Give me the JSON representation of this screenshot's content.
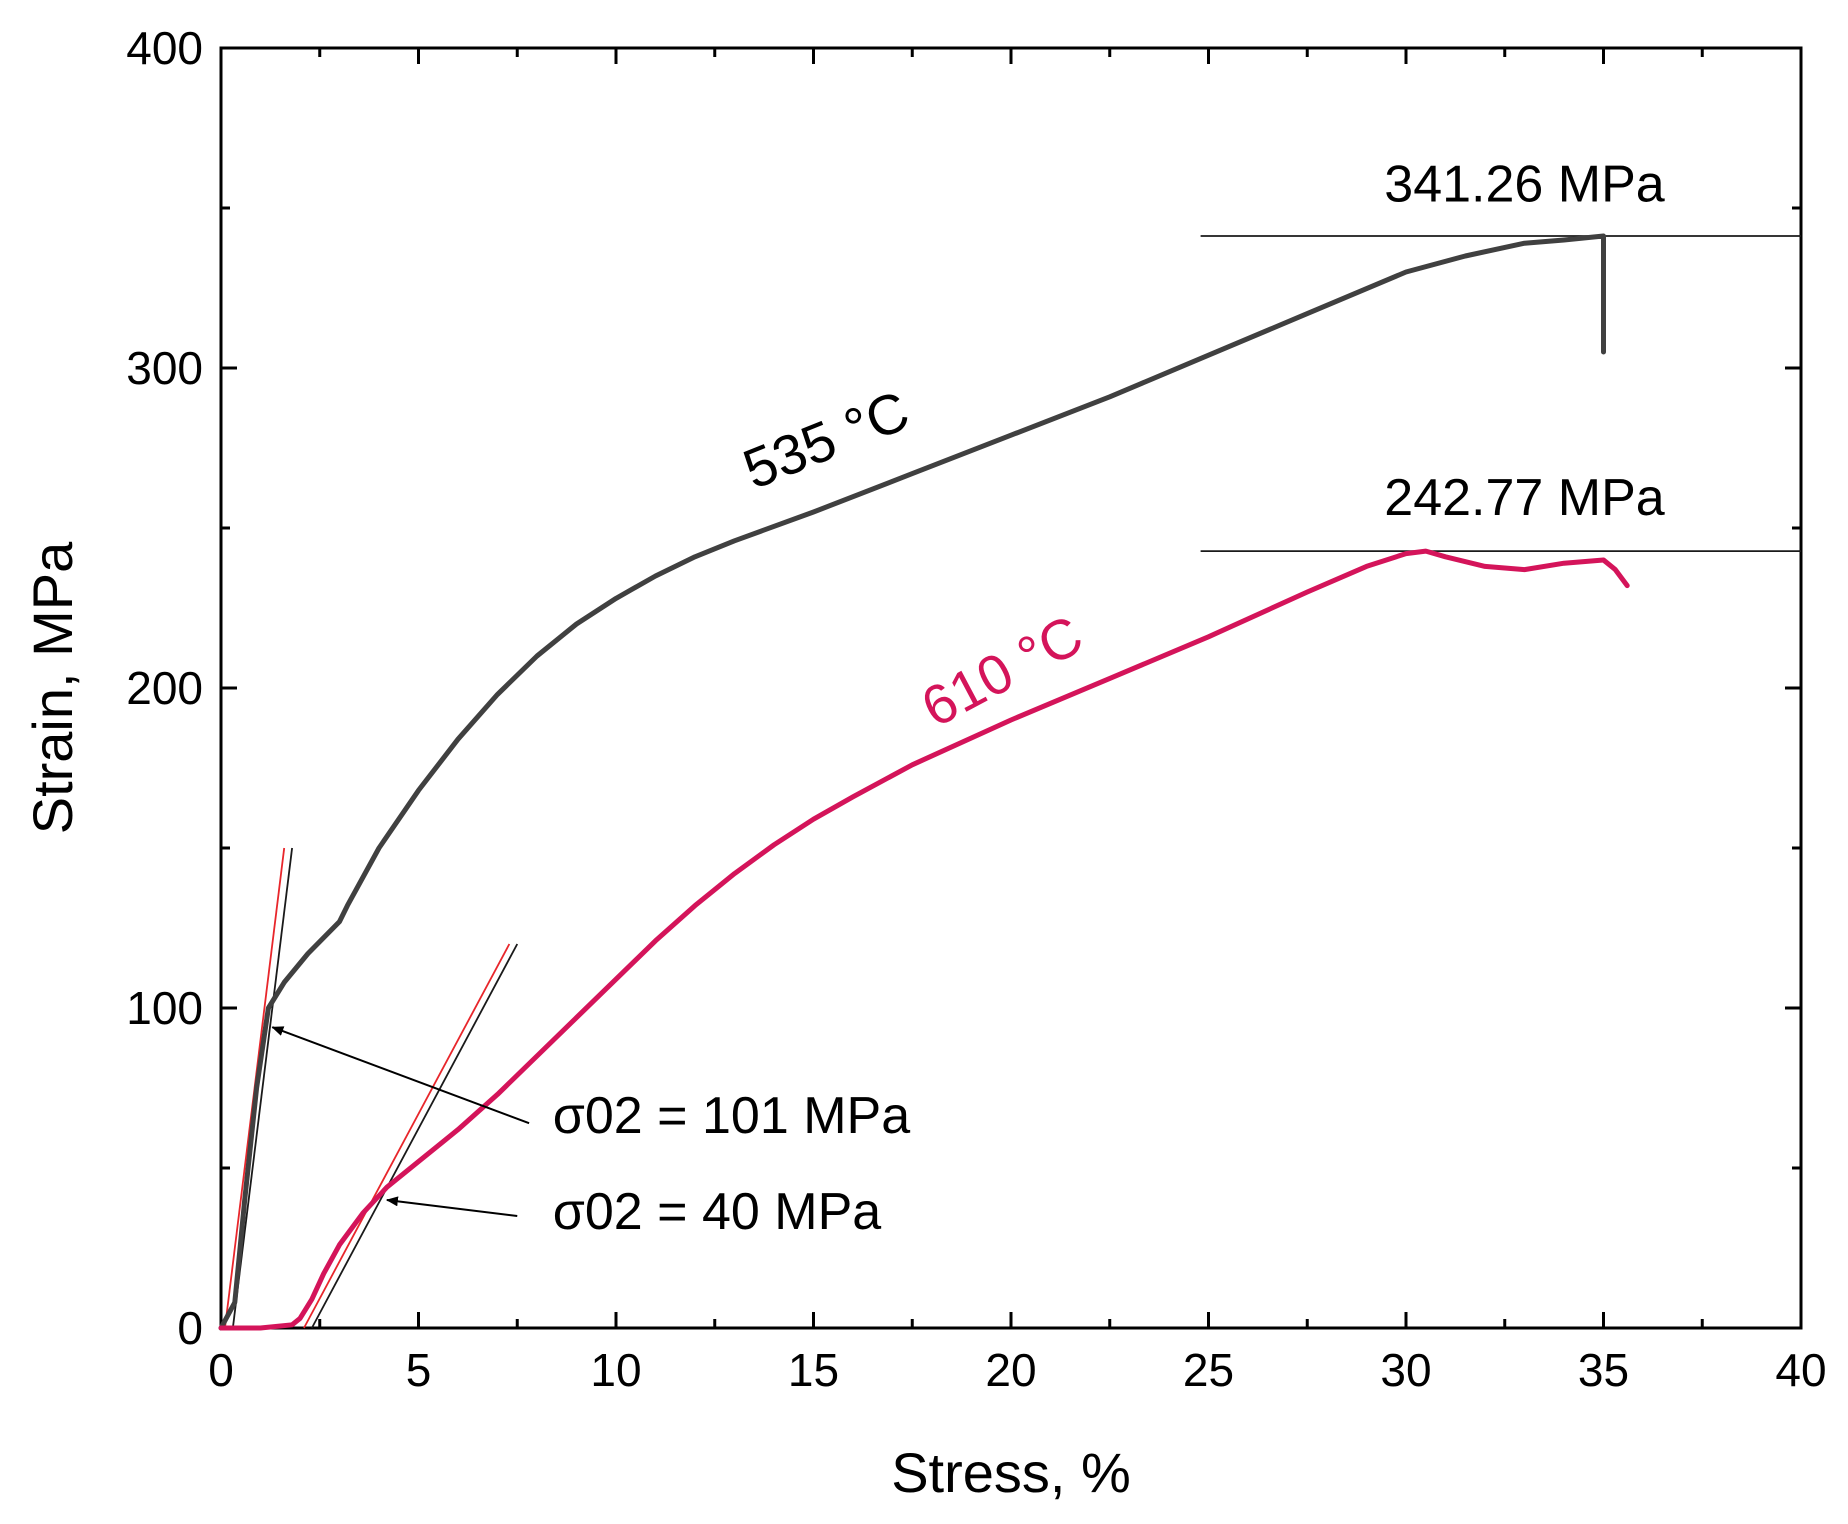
{
  "chart_data": {
    "type": "line",
    "xlabel": "Stress, %",
    "ylabel": "Strain, MPa",
    "xlim": [
      0,
      40
    ],
    "ylim": [
      0,
      400
    ],
    "xticks": [
      0,
      5,
      10,
      15,
      20,
      25,
      30,
      35,
      40
    ],
    "yticks": [
      0,
      100,
      200,
      300,
      400
    ],
    "grid": false,
    "colors": {
      "c535": "#404040",
      "c610": "#d4145a",
      "red_guide": "#e8262b",
      "black": "#000000"
    },
    "series": [
      {
        "name": "535 °C",
        "color": "#404040",
        "x": [
          0.0,
          0.35,
          0.6,
          0.9,
          1.2,
          1.6,
          2.2,
          3.0,
          3.2,
          4.0,
          5.0,
          6.0,
          7.0,
          8.0,
          9.0,
          10.0,
          11.0,
          12.0,
          13.0,
          15.0,
          17.5,
          20.0,
          22.5,
          25.0,
          27.5,
          30.0,
          31.5,
          33.0,
          34.0,
          35.0,
          35.0
        ],
        "y": [
          0,
          8,
          40,
          75,
          100,
          108,
          117,
          127,
          132,
          150,
          168,
          184,
          198,
          210,
          220,
          228,
          235,
          241,
          246,
          255,
          267,
          279,
          291,
          304,
          317,
          330,
          335,
          339,
          340,
          341.26,
          305
        ]
      },
      {
        "name": "610 °C",
        "color": "#d4145a",
        "x": [
          0.0,
          1.0,
          1.8,
          2.0,
          2.3,
          2.6,
          3.0,
          3.6,
          4.2,
          5.0,
          6.0,
          7.0,
          8.0,
          9.0,
          10.0,
          11.0,
          12.0,
          13.0,
          14.0,
          15.0,
          16.0,
          17.5,
          20.0,
          22.5,
          25.0,
          27.5,
          29.0,
          30.0,
          30.5,
          31.0,
          32.0,
          33.0,
          34.0,
          35.0,
          35.3,
          35.6
        ],
        "y": [
          0,
          0,
          1,
          3,
          9,
          17,
          26,
          36,
          44,
          52,
          62,
          73,
          85,
          97,
          109,
          121,
          132,
          142,
          151,
          159,
          166,
          176,
          190,
          203,
          216,
          230,
          238,
          242,
          242.77,
          241,
          238,
          237,
          239,
          240,
          237,
          232
        ]
      }
    ],
    "guide_lines": [
      {
        "color": "red",
        "x1": 0.1,
        "y1": 0,
        "x2": 1.6,
        "y2": 150
      },
      {
        "color": "black",
        "x1": 0.3,
        "y1": 0,
        "x2": 1.8,
        "y2": 150
      },
      {
        "color": "red",
        "x1": 2.1,
        "y1": 0,
        "x2": 7.3,
        "y2": 120
      },
      {
        "color": "black",
        "x1": 2.3,
        "y1": 0,
        "x2": 7.5,
        "y2": 120
      },
      {
        "color": "black",
        "x1": 24.8,
        "y1": 341.26,
        "x2": 40,
        "y2": 341.26
      },
      {
        "color": "black",
        "x1": 24.8,
        "y1": 242.77,
        "x2": 40,
        "y2": 242.77
      }
    ],
    "annotations": [
      {
        "text": "341.26 MPa",
        "x": 33,
        "y": 352,
        "anchor": "middle"
      },
      {
        "text": "242.77 MPa",
        "x": 33,
        "y": 254,
        "anchor": "middle"
      },
      {
        "text": "535 °C",
        "x": 15.5,
        "y": 272,
        "anchor": "middle",
        "rotate": -22,
        "color": "#000000",
        "kind": "curve"
      },
      {
        "text": "610 °C",
        "x": 20,
        "y": 200,
        "anchor": "middle",
        "rotate": -28,
        "color": "#d4145a",
        "kind": "curve"
      },
      {
        "text": "σ02 = 101 MPa",
        "x": 8.4,
        "y": 61,
        "anchor": "start",
        "arrow_from": [
          7.8,
          64
        ],
        "arrow_to": [
          1.3,
          94
        ]
      },
      {
        "text": "σ02 = 40 MPa",
        "x": 8.4,
        "y": 31,
        "anchor": "start",
        "arrow_from": [
          7.5,
          35
        ],
        "arrow_to": [
          4.2,
          40
        ]
      }
    ]
  }
}
